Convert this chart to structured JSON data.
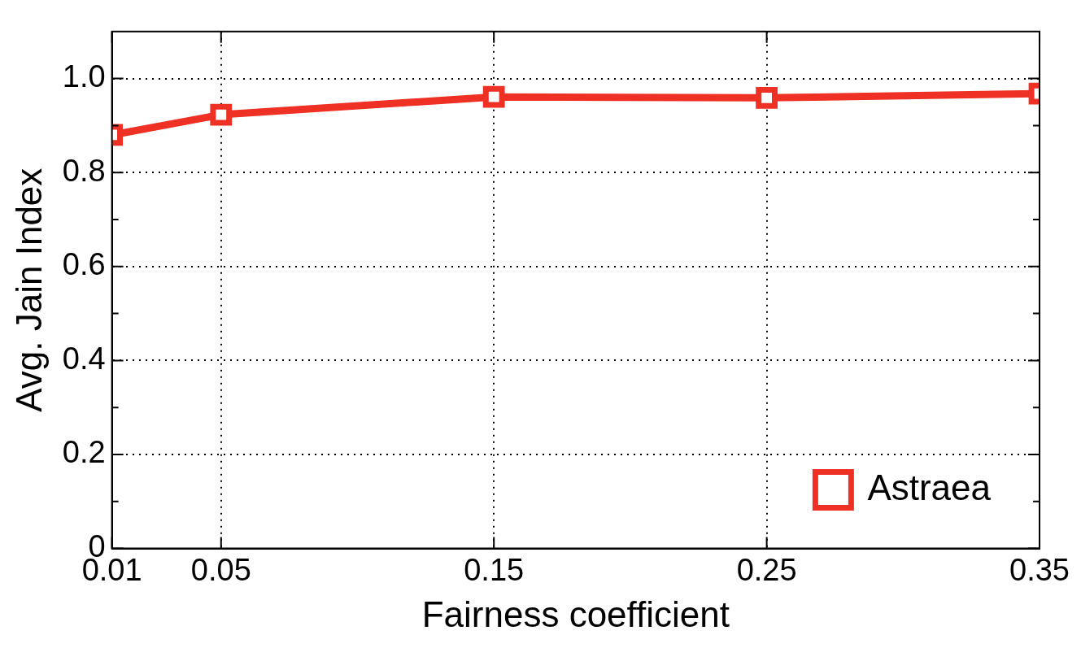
{
  "chart_data": {
    "type": "line",
    "xlabel": "Fairness coefficient",
    "ylabel": "Avg. Jain Index",
    "x": [
      0.01,
      0.05,
      0.15,
      0.25,
      0.35
    ],
    "series": [
      {
        "name": "Astraea",
        "color": "#ee3124",
        "values": [
          0.88,
          0.923,
          0.961,
          0.959,
          0.968
        ]
      }
    ],
    "xlim": [
      0.01,
      0.35
    ],
    "xticks": [
      0.01,
      0.05,
      0.15,
      0.25,
      0.35
    ],
    "ylim": [
      0,
      1.1
    ],
    "yticks": [
      0,
      {
        "value": 0.1,
        "label": null
      },
      0.2,
      {
        "value": 0.3,
        "label": null
      },
      0.4,
      {
        "value": 0.5,
        "label": null
      },
      0.6,
      {
        "value": 0.7,
        "label": null
      },
      0.8,
      {
        "value": 0.9,
        "label": null
      },
      {
        "value": 1.0,
        "label": "1.0"
      }
    ],
    "grid": true,
    "legend": "bottom right",
    "marker": "square",
    "line_style": "solid"
  }
}
